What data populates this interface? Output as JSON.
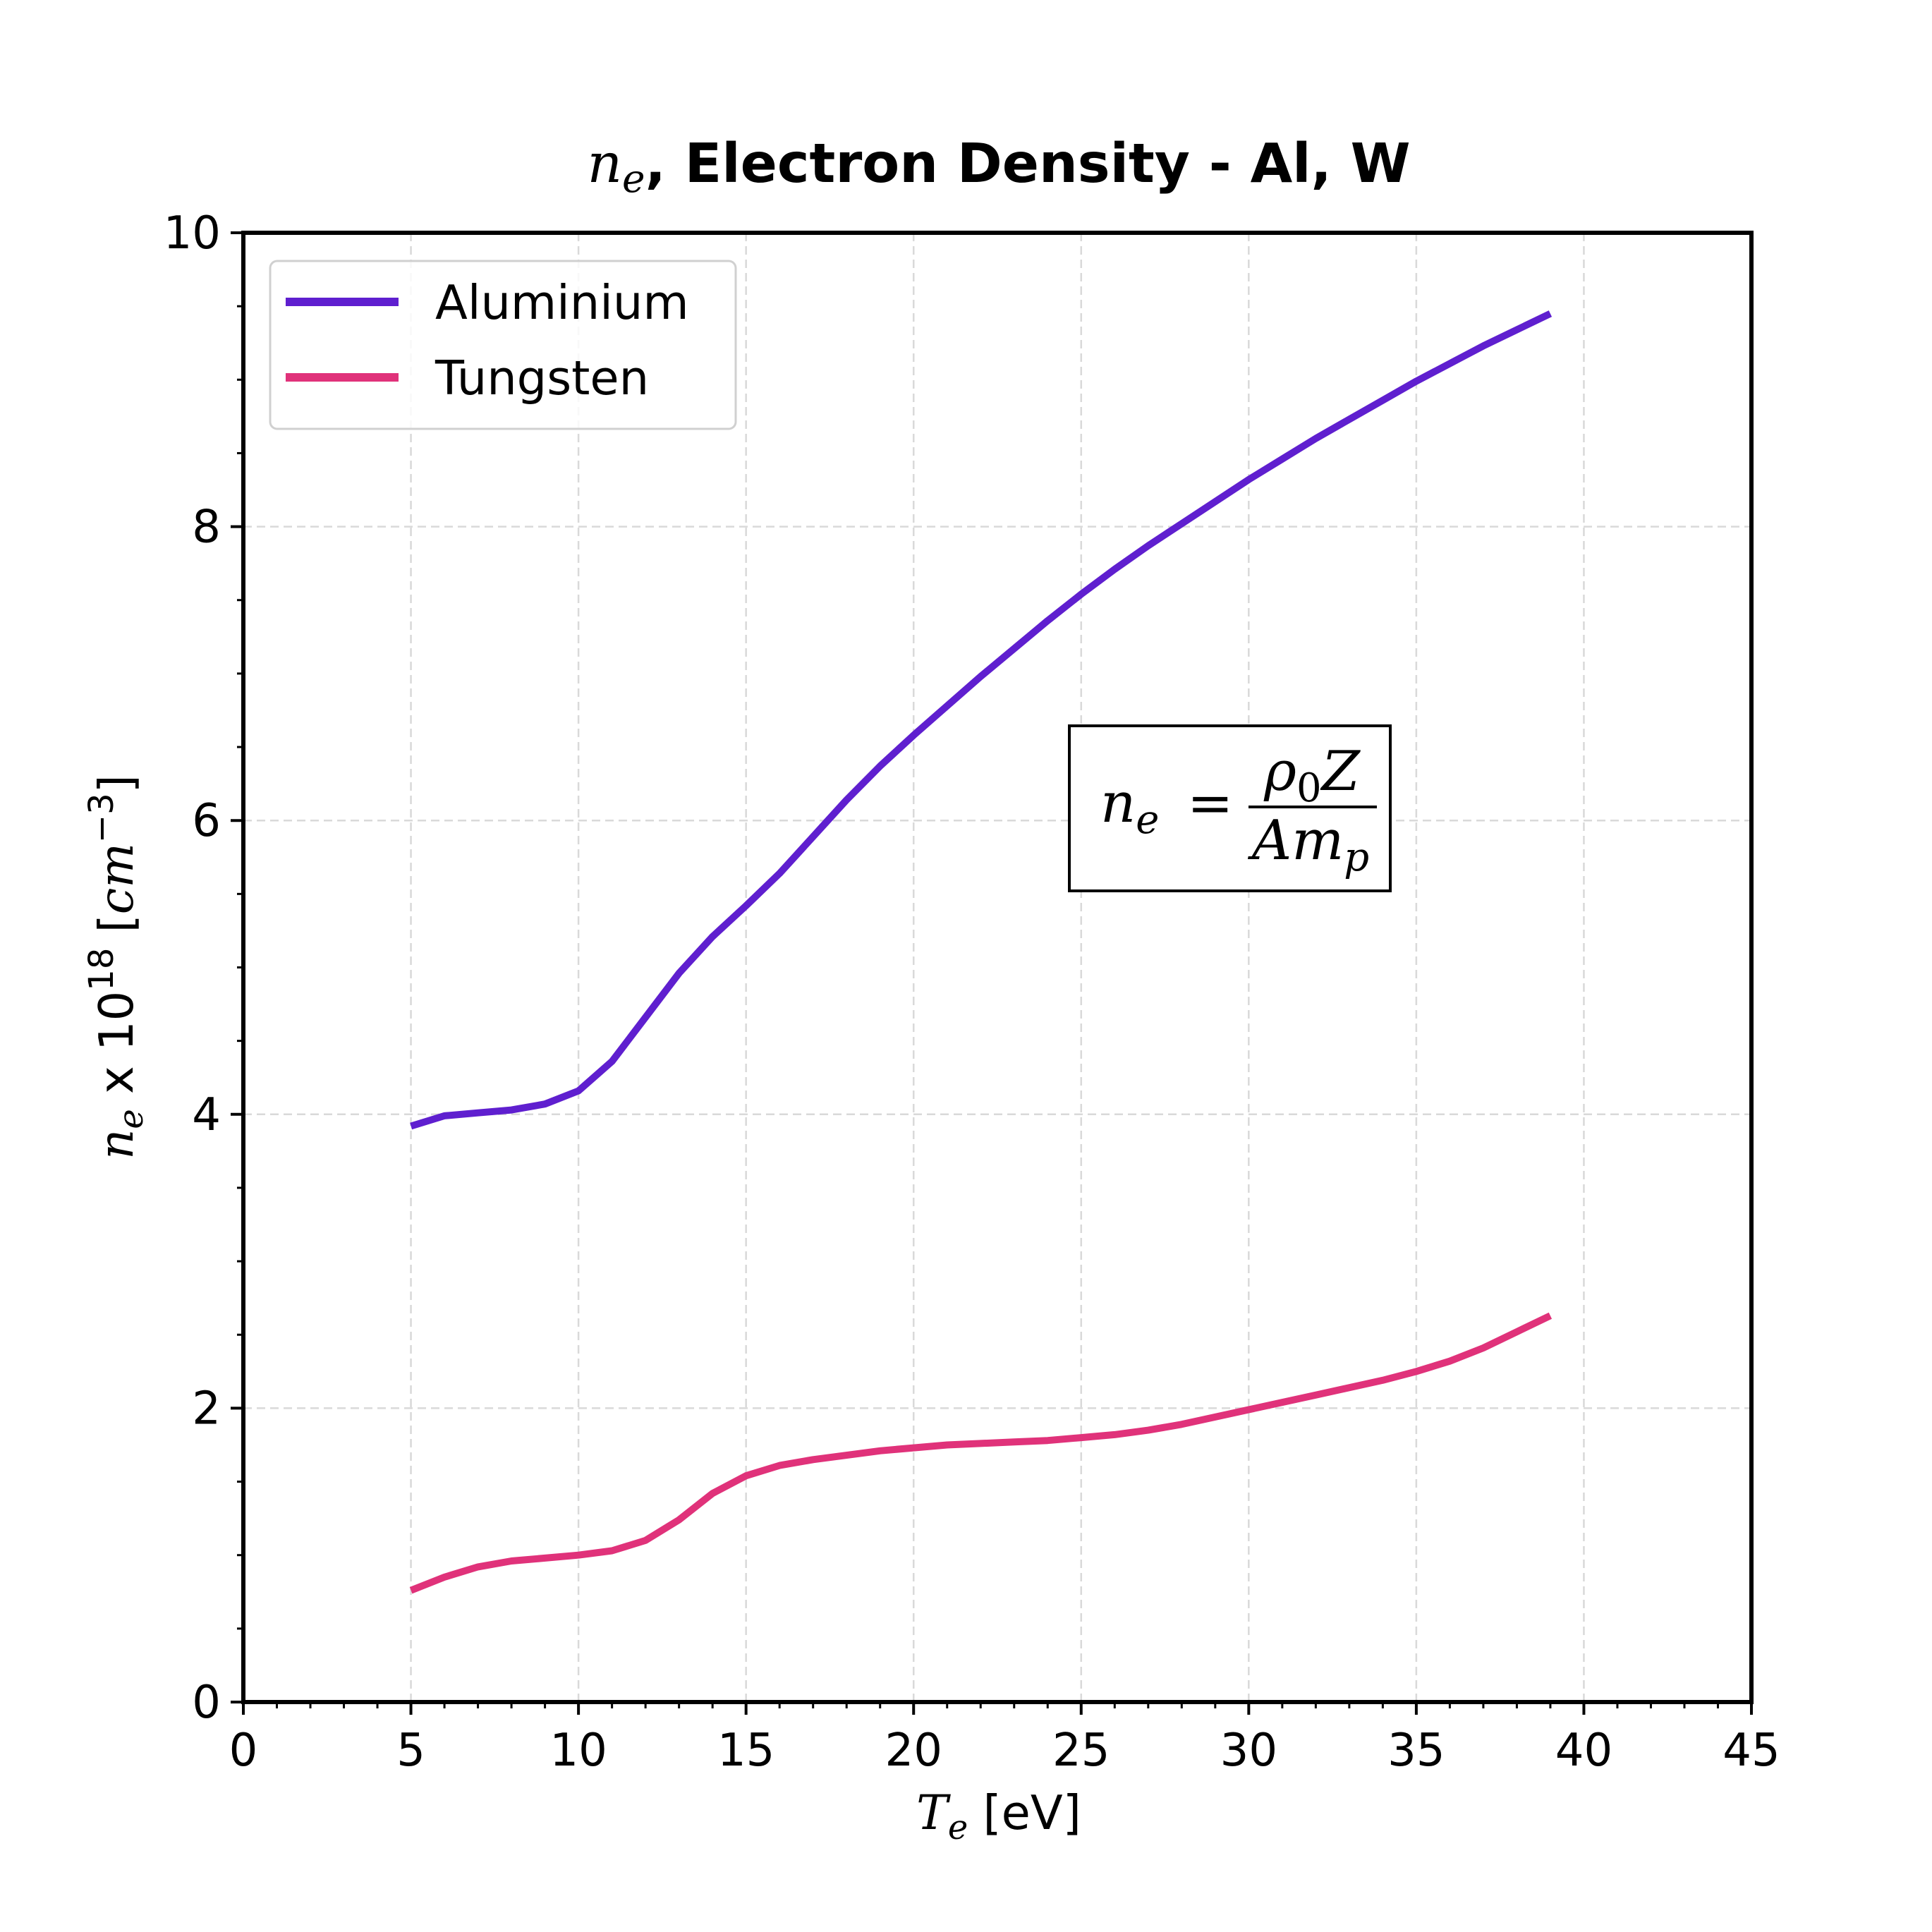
{
  "chart_data": {
    "type": "line",
    "title": {
      "symbol": "n",
      "subscript": "e",
      "text": ", Electron Density - Al, W"
    },
    "xlabel": {
      "symbol": "T",
      "subscript": "e",
      "text": " [eV]"
    },
    "ylabel": {
      "symbol": "n",
      "subscript": "e",
      "text_x": " x 10",
      "power": "18",
      "unit_open": " [",
      "unit": "cm",
      "unit_power": "−3",
      "unit_close": "]"
    },
    "xlim": [
      0,
      45
    ],
    "ylim": [
      0,
      10
    ],
    "xticks": [
      0,
      5,
      10,
      15,
      20,
      25,
      30,
      35,
      40,
      45
    ],
    "yticks": [
      0,
      2,
      4,
      6,
      8,
      10
    ],
    "grid": true,
    "legend_position": "top-left",
    "series": [
      {
        "name": "Aluminium",
        "color": "#5f1fcf",
        "x": [
          5,
          6,
          7,
          8,
          9,
          10,
          11,
          12,
          13,
          14,
          15,
          16,
          17,
          18,
          19,
          20,
          21,
          22,
          23,
          24,
          25,
          26,
          27,
          28,
          29,
          30,
          31,
          32,
          33,
          34,
          35,
          36,
          37,
          38,
          39
        ],
        "y": [
          3.92,
          3.99,
          4.01,
          4.03,
          4.07,
          4.16,
          4.36,
          4.66,
          4.96,
          5.21,
          5.42,
          5.64,
          5.89,
          6.14,
          6.37,
          6.58,
          6.78,
          6.98,
          7.17,
          7.36,
          7.54,
          7.71,
          7.87,
          8.02,
          8.17,
          8.32,
          8.46,
          8.6,
          8.73,
          8.86,
          8.99,
          9.11,
          9.23,
          9.34,
          9.45
        ]
      },
      {
        "name": "Tungsten",
        "color": "#e0327a",
        "x": [
          5,
          6,
          7,
          8,
          9,
          10,
          11,
          12,
          13,
          14,
          15,
          16,
          17,
          18,
          19,
          20,
          21,
          22,
          23,
          24,
          25,
          26,
          27,
          28,
          29,
          30,
          31,
          32,
          33,
          34,
          35,
          36,
          37,
          38,
          39
        ],
        "y": [
          0.76,
          0.85,
          0.92,
          0.96,
          0.98,
          1.0,
          1.03,
          1.1,
          1.24,
          1.42,
          1.54,
          1.61,
          1.65,
          1.68,
          1.71,
          1.73,
          1.75,
          1.76,
          1.77,
          1.78,
          1.8,
          1.82,
          1.85,
          1.89,
          1.94,
          1.99,
          2.04,
          2.09,
          2.14,
          2.19,
          2.25,
          2.32,
          2.41,
          2.52,
          2.63
        ]
      }
    ],
    "annotation": {
      "lhs_symbol": "n",
      "lhs_subscript": "e",
      "equals": "=",
      "num_rho": "ρ",
      "num_rho_sub": "0",
      "num_z": "Z",
      "den_a": "A",
      "den_m": "m",
      "den_m_sub": "p"
    }
  }
}
